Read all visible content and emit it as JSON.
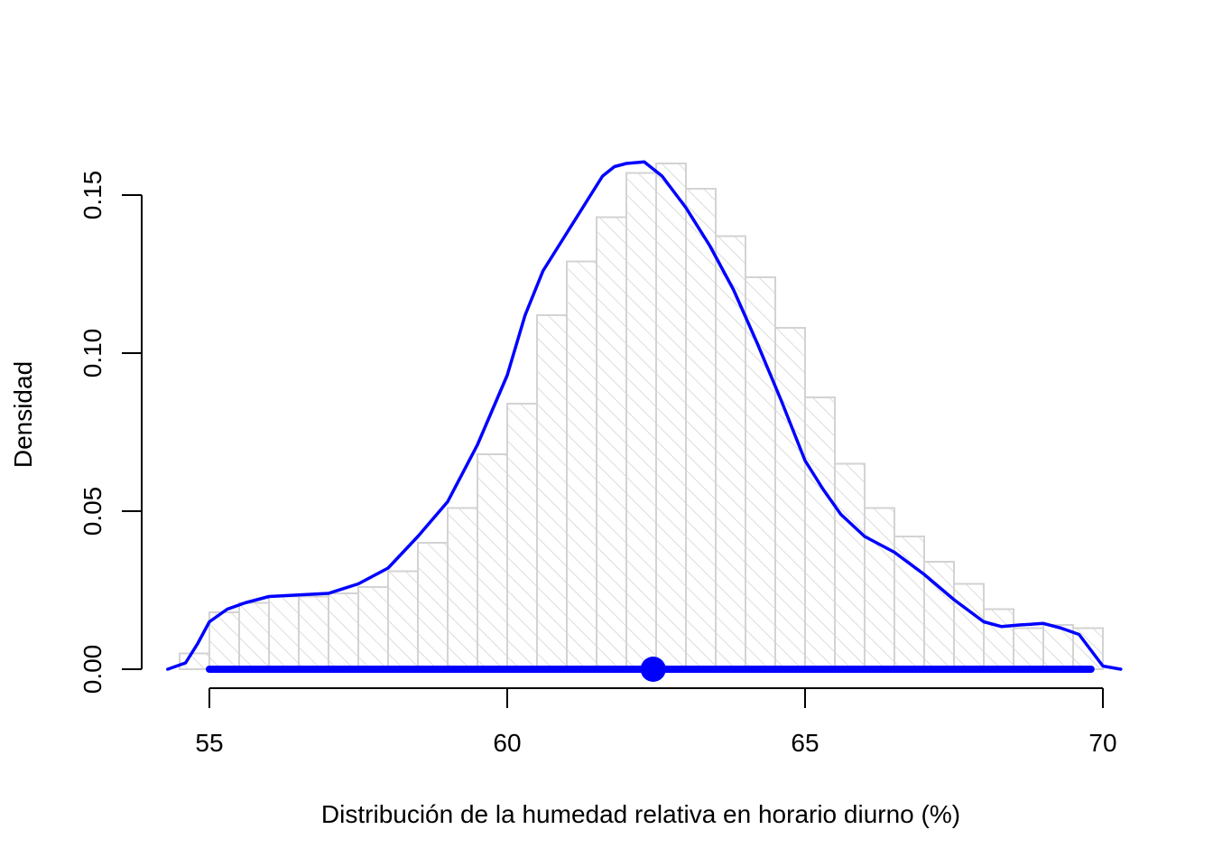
{
  "chart_data": {
    "type": "histogram",
    "xlabel": "Distribución de la humedad relativa en horario diurno (%)",
    "ylabel": "Densidad",
    "xlim": [
      54.5,
      70.5
    ],
    "ylim": [
      0,
      0.165
    ],
    "x_ticks": [
      55,
      60,
      65,
      70
    ],
    "x_tick_labels": [
      "55",
      "60",
      "65",
      "70"
    ],
    "y_ticks": [
      0.0,
      0.05,
      0.1,
      0.15
    ],
    "y_tick_labels": [
      "0.00",
      "0.05",
      "0.10",
      "0.15"
    ],
    "grid": false,
    "legend": "none",
    "histogram": {
      "bin_width": 0.5,
      "bin_edges": [
        54.5,
        55.0,
        55.5,
        56.0,
        56.5,
        57.0,
        57.5,
        58.0,
        58.5,
        59.0,
        59.5,
        60.0,
        60.5,
        61.0,
        61.5,
        62.0,
        62.5,
        63.0,
        63.5,
        64.0,
        64.5,
        65.0,
        65.5,
        66.0,
        66.5,
        67.0,
        67.5,
        68.0,
        68.5,
        69.0,
        69.5,
        70.0
      ],
      "densities": [
        0.005,
        0.018,
        0.021,
        0.023,
        0.023,
        0.024,
        0.026,
        0.031,
        0.04,
        0.051,
        0.068,
        0.084,
        0.112,
        0.129,
        0.143,
        0.157,
        0.16,
        0.152,
        0.137,
        0.124,
        0.108,
        0.086,
        0.065,
        0.051,
        0.042,
        0.034,
        0.027,
        0.019,
        0.013,
        0.014,
        0.013,
        0.006
      ],
      "fill": "#e8e8e8",
      "stroke": "#d3d3d3",
      "hatch": "diagonal"
    },
    "density_curve": {
      "color": "#0000ff",
      "x": [
        54.3,
        54.6,
        54.8,
        55.0,
        55.3,
        55.6,
        56.0,
        56.5,
        57.0,
        57.5,
        58.0,
        58.5,
        59.0,
        59.5,
        60.0,
        60.3,
        60.6,
        61.0,
        61.3,
        61.6,
        61.8,
        62.0,
        62.3,
        62.6,
        63.0,
        63.4,
        63.8,
        64.2,
        64.6,
        65.0,
        65.3,
        65.6,
        66.0,
        66.5,
        67.0,
        67.5,
        68.0,
        68.3,
        68.6,
        69.0,
        69.3,
        69.6,
        69.8,
        70.0,
        70.3
      ],
      "y": [
        0.0,
        0.002,
        0.008,
        0.015,
        0.019,
        0.021,
        0.023,
        0.0235,
        0.024,
        0.027,
        0.032,
        0.042,
        0.053,
        0.071,
        0.093,
        0.112,
        0.126,
        0.138,
        0.147,
        0.156,
        0.159,
        0.16,
        0.1605,
        0.156,
        0.146,
        0.134,
        0.12,
        0.103,
        0.085,
        0.066,
        0.057,
        0.049,
        0.042,
        0.037,
        0.03,
        0.022,
        0.015,
        0.0135,
        0.014,
        0.0145,
        0.013,
        0.011,
        0.006,
        0.001,
        0.0
      ]
    },
    "range_bar": {
      "x_start": 55.0,
      "x_end": 69.8,
      "y": 0.0,
      "color": "#0000ff"
    },
    "center_point": {
      "x": 62.45,
      "y": 0.0,
      "color": "#0000ff"
    }
  }
}
